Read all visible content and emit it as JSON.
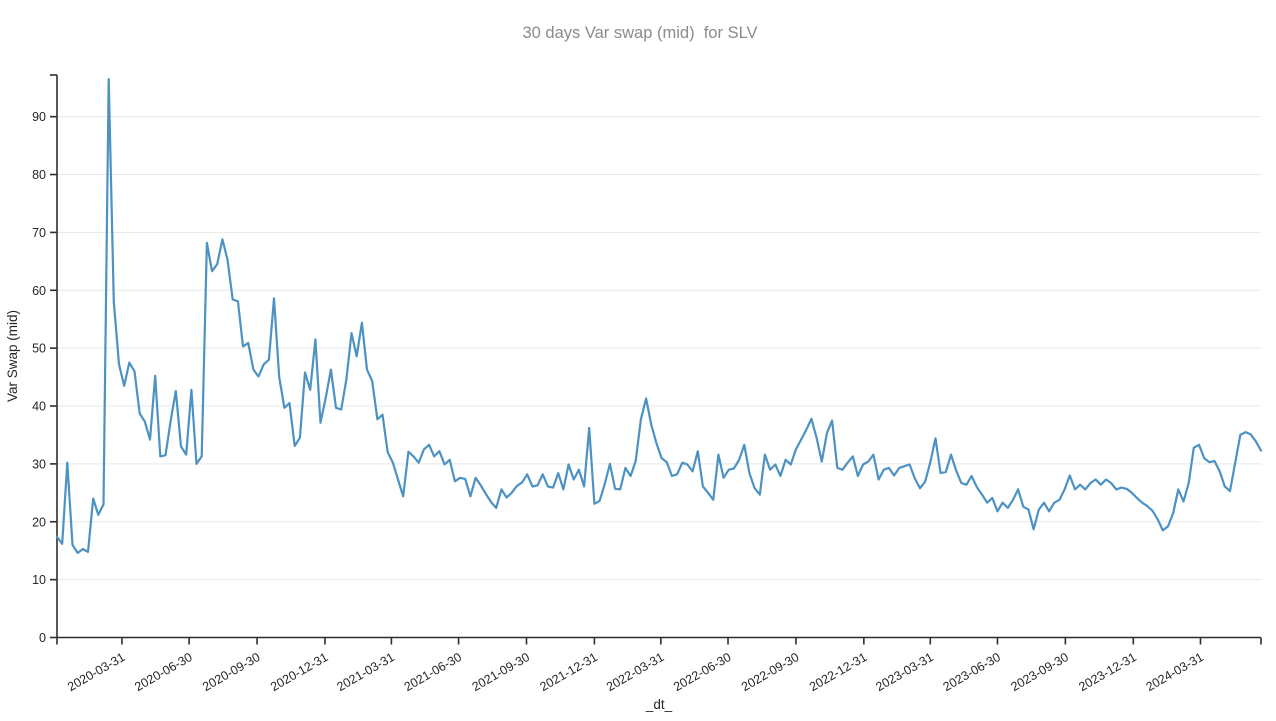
{
  "title": "30 days Var swap (mid)  for SLV",
  "chart_data": {
    "type": "line",
    "title": "30 days Var swap (mid)  for SLV",
    "xlabel": "_dt_",
    "ylabel": "Var Swap (mid)",
    "legend": "none",
    "grid": "horizontal-only",
    "ylim": [
      0,
      97.2
    ],
    "y_ticks": [
      0,
      10,
      20,
      30,
      40,
      50,
      60,
      70,
      80,
      90
    ],
    "x_ticks": [
      "2020-03-31",
      "2020-06-30",
      "2020-09-30",
      "2020-12-31",
      "2021-03-31",
      "2021-06-30",
      "2021-09-30",
      "2021-12-31",
      "2022-03-31",
      "2022-06-30",
      "2022-09-30",
      "2022-12-31",
      "2023-03-31",
      "2023-06-30",
      "2023-09-30",
      "2023-12-31",
      "2024-03-31"
    ],
    "x_tick_rotation_deg": -30,
    "x_start_date": "2020-01-03",
    "x_interval_days": 7,
    "colors": {
      "line": "#4c92c3",
      "grid": "#e7e7e7",
      "axis": "#2e2e2e",
      "tick_label": "#262626",
      "title": "#8b8b8b",
      "background": "#ffffff"
    },
    "series": [
      {
        "name": "30d var swap mid",
        "values": [
          17.4,
          16.2,
          30.2,
          16.0,
          14.6,
          15.3,
          14.8,
          24.0,
          21.2,
          23.0,
          96.5,
          58.0,
          47.2,
          43.5,
          47.5,
          46.0,
          38.7,
          37.3,
          34.2,
          45.2,
          31.3,
          31.5,
          37.5,
          42.6,
          33.0,
          31.6,
          42.8,
          30.0,
          31.3,
          68.2,
          63.3,
          64.5,
          68.8,
          65.3,
          58.4,
          58.1,
          50.3,
          50.9,
          46.3,
          45.1,
          47.2,
          48.0,
          58.6,
          45.0,
          39.7,
          40.5,
          33.1,
          34.5,
          45.8,
          42.8,
          51.5,
          37.1,
          41.4,
          46.3,
          39.7,
          39.4,
          44.6,
          52.6,
          48.6,
          54.4,
          46.3,
          44.3,
          37.7,
          38.5,
          32.0,
          30.2,
          27.3,
          24.4,
          32.1,
          31.3,
          30.2,
          32.5,
          33.3,
          31.3,
          32.2,
          29.9,
          30.7,
          27.0,
          27.6,
          27.4,
          24.4,
          27.6,
          26.3,
          24.8,
          23.4,
          22.4,
          25.6,
          24.2,
          25.0,
          26.2,
          26.8,
          28.2,
          26.1,
          26.3,
          28.2,
          26.1,
          25.9,
          28.4,
          25.6,
          29.9,
          27.3,
          29.0,
          26.1,
          36.2,
          23.1,
          23.6,
          26.5,
          30.0,
          25.7,
          25.6,
          29.3,
          27.9,
          30.5,
          37.7,
          41.3,
          36.8,
          33.6,
          31.0,
          30.3,
          27.9,
          28.2,
          30.2,
          29.9,
          28.7,
          32.2,
          26.1,
          25.0,
          23.8,
          31.6,
          27.6,
          29.0,
          29.2,
          30.7,
          33.3,
          28.4,
          25.8,
          24.7,
          31.6,
          29.0,
          29.9,
          27.9,
          30.7,
          29.9,
          32.5,
          34.2,
          35.9,
          37.8,
          34.5,
          30.4,
          35.3,
          37.5,
          29.3,
          29.0,
          30.2,
          31.3,
          27.9,
          29.9,
          30.4,
          31.6,
          27.3,
          29.0,
          29.3,
          28.0,
          29.3,
          29.6,
          29.9,
          27.5,
          25.8,
          26.9,
          30.3,
          34.4,
          28.4,
          28.6,
          31.6,
          28.9,
          26.7,
          26.4,
          27.9,
          26.0,
          24.7,
          23.3,
          24.1,
          21.8,
          23.3,
          22.4,
          23.8,
          25.6,
          22.6,
          22.1,
          18.7,
          22.1,
          23.3,
          21.8,
          23.3,
          23.8,
          25.6,
          28.0,
          25.6,
          26.4,
          25.6,
          26.7,
          27.3,
          26.4,
          27.3,
          26.7,
          25.6,
          25.9,
          25.7,
          25.0,
          24.1,
          23.3,
          22.7,
          21.9,
          20.4,
          18.5,
          19.2,
          21.5,
          25.6,
          23.5,
          26.7,
          32.8,
          33.3,
          31.0,
          30.3,
          30.5,
          28.7,
          26.1,
          25.3,
          30.2,
          35.0,
          35.5,
          35.1,
          33.9,
          32.3
        ]
      }
    ]
  }
}
